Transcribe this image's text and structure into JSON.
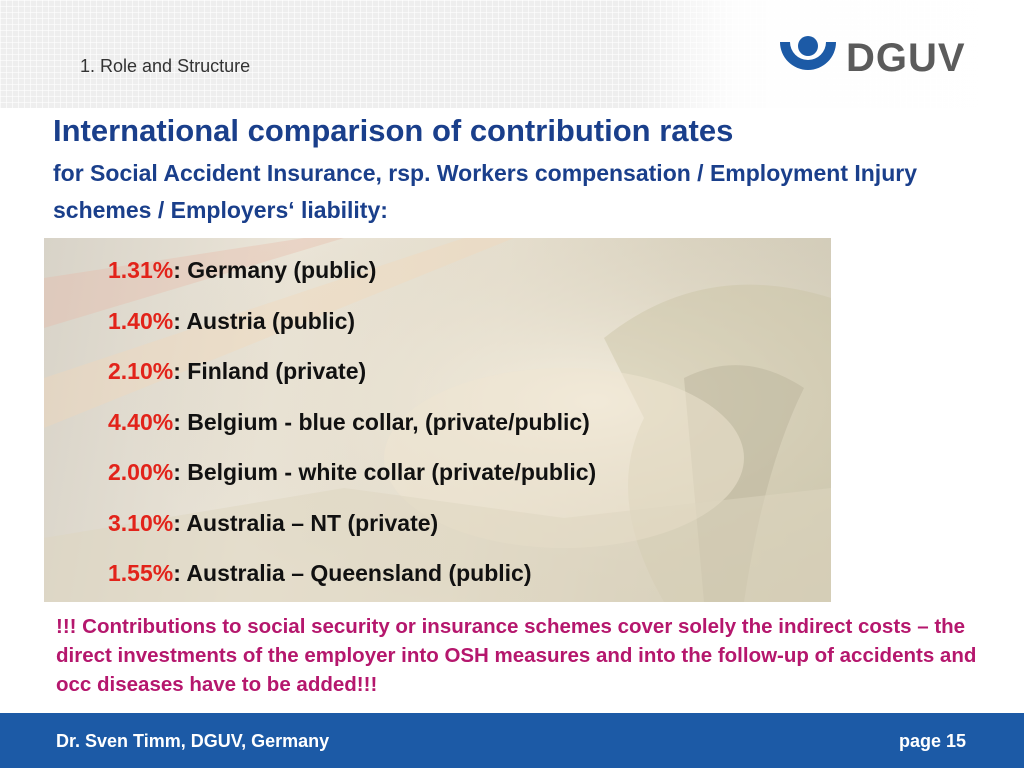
{
  "header": {
    "section_label": "1. Role and Structure",
    "logo_text": "DGUV",
    "logo_icon": "dguv-logo-icon"
  },
  "title": "International comparison of contribution rates",
  "subtitle": "for Social Accident Insurance, rsp. Workers compensation / Employment Injury schemes / Employers‘ liability:",
  "rates": [
    {
      "percent": "1.31%",
      "label": ": Germany (public)"
    },
    {
      "percent": "1.40%",
      "label": ": Austria (public)"
    },
    {
      "percent": "2.10%",
      "label": ": Finland (private)"
    },
    {
      "percent": "4.40%",
      "label": ": Belgium - blue collar, (private/public)"
    },
    {
      "percent": "2.00%",
      "label": ": Belgium - white collar (private/public)"
    },
    {
      "percent": "3.10%",
      "label": ": Australia – NT (private)"
    },
    {
      "percent": "1.55%",
      "label": ": Australia – Queensland (public)"
    }
  ],
  "note": "!!! Contributions to social security or insurance schemes cover solely the indirect costs – the direct investments of the employer into OSH measures and into the follow-up of accidents and occ diseases have to be added!!!",
  "footer": {
    "author": "Dr. Sven Timm, DGUV, Germany",
    "page": "page 15"
  },
  "colors": {
    "title_blue": "#1a3f8b",
    "percent_red": "#e2231a",
    "note_magenta": "#b5176d",
    "footer_blue": "#1c5aa6",
    "logo_blue": "#1c5aa6"
  }
}
